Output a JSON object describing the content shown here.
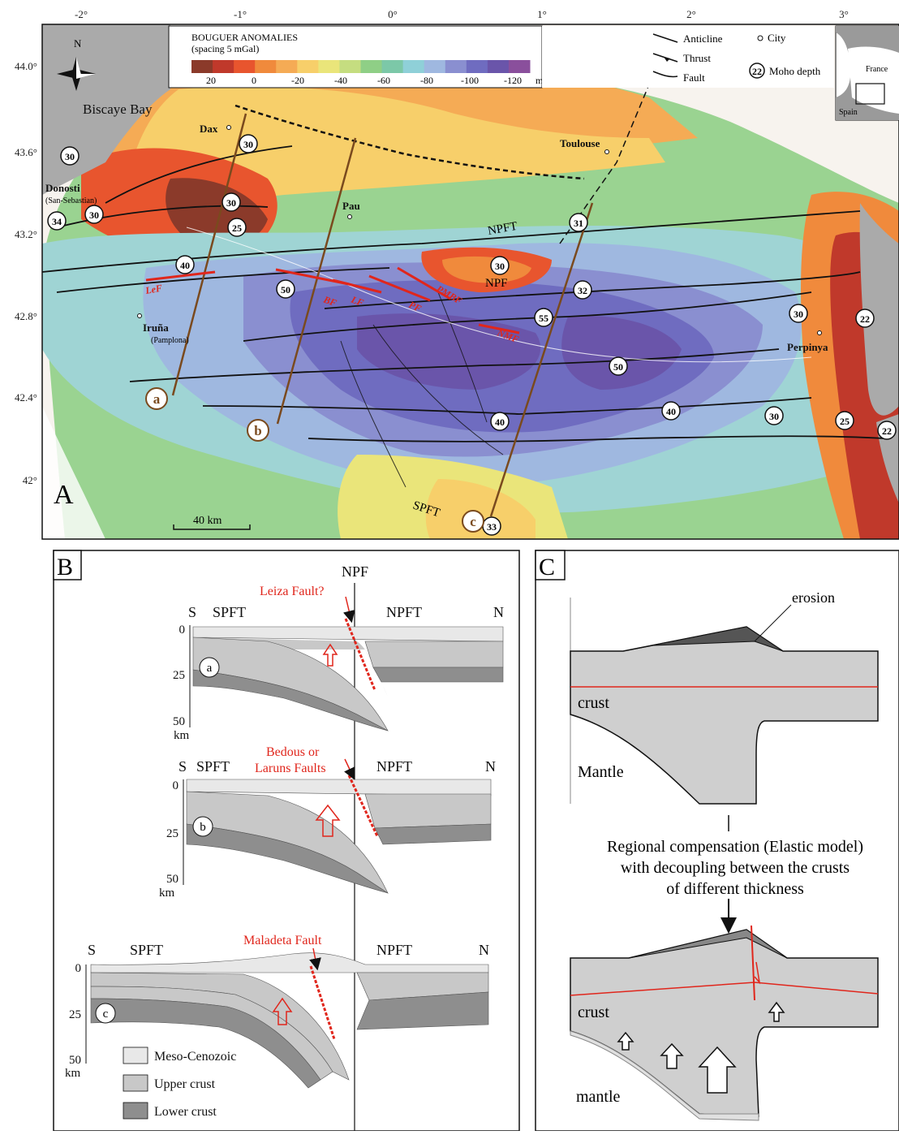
{
  "panelA": {
    "letter": "A",
    "lon_ticks": [
      "-2°",
      "-1°",
      "0°",
      "1°",
      "2°",
      "3°"
    ],
    "lat_ticks": [
      "44.0°",
      "43.6°",
      "43.2°",
      "42.8°",
      "42.4°",
      "42°"
    ],
    "colorbar": {
      "title": "BOUGUER ANOMALIES",
      "subtitle": "(spacing 5 mGal)",
      "ticks": [
        "20",
        "0",
        "-20",
        "-40",
        "-60",
        "-80",
        "-100",
        "-120"
      ],
      "unit": "mGal",
      "colors": [
        "#8b3a2a",
        "#c0392b",
        "#e8552e",
        "#f08a3c",
        "#f5ab55",
        "#f7cf6a",
        "#eae57a",
        "#c5dd80",
        "#8fcf86",
        "#7cc8a8",
        "#8fd0d8",
        "#9fb8e0",
        "#8a8fd0",
        "#6f6cc0",
        "#6a55aa",
        "#8a4f9c"
      ]
    },
    "legend": {
      "anticline": "Anticline",
      "thrust": "Thrust",
      "fault": "Fault",
      "city": "City",
      "moho_symbol": "22",
      "moho": "Moho depth"
    },
    "inset": {
      "france": "France",
      "spain": "Spain"
    },
    "places": {
      "biscaye": "Biscaye Bay",
      "dax": "Dax",
      "donosti": "Donosti",
      "donosti_sub": "(San-Sebastian)",
      "pau": "Pau",
      "toulouse": "Toulouse",
      "iruna": "Iruña",
      "iruna_sub": "(Pamplona)",
      "perpinya": "Perpinya",
      "north": "N"
    },
    "structures": {
      "npft": "NPFT",
      "npf": "NPF",
      "spft": "SPFT",
      "lef": "LeF",
      "bf": "BF",
      "lf": "LF",
      "pf": "PF",
      "pmbf": "PMBF",
      "nmf": "NMF"
    },
    "moho_values": [
      "30",
      "30",
      "34",
      "30",
      "30",
      "25",
      "40",
      "50",
      "31",
      "30",
      "32",
      "55",
      "30",
      "22",
      "50",
      "40",
      "40",
      "30",
      "25",
      "22",
      "33"
    ],
    "profiles": [
      "a",
      "b",
      "c"
    ],
    "scale": "40 km"
  },
  "panelB": {
    "letter": "B",
    "npf": "NPF",
    "sections": [
      {
        "id": "a",
        "fault": "Leiza Fault?",
        "fault2": "",
        "s": "S",
        "spft": "SPFT",
        "npft": "NPFT",
        "n": "N"
      },
      {
        "id": "b",
        "fault": "Bedous or",
        "fault2": "Laruns Faults",
        "s": "S",
        "spft": "SPFT",
        "npft": "NPFT",
        "n": "N"
      },
      {
        "id": "c",
        "fault": "Maladeta Fault",
        "fault2": "",
        "s": "S",
        "spft": "SPFT",
        "npft": "NPFT",
        "n": "N"
      }
    ],
    "depth_ticks": [
      "0",
      "25",
      "50"
    ],
    "depth_unit": "km",
    "legend": [
      "Meso-Cenozoic",
      "Upper crust",
      "Lower crust"
    ],
    "colors": {
      "meso": "#e8e8e8",
      "upper": "#c8c8c8",
      "lower": "#8e8e8e",
      "fault": "#e0261c"
    }
  },
  "panelC": {
    "letter": "C",
    "erosion": "erosion",
    "crust_top": "crust",
    "mantle_top": "Mantle",
    "caption1": "Regional compensation (Elastic model)",
    "caption2": "with decoupling between the crusts",
    "caption3": "of different thickness",
    "crust_bottom": "crust",
    "mantle_bottom": "mantle"
  }
}
